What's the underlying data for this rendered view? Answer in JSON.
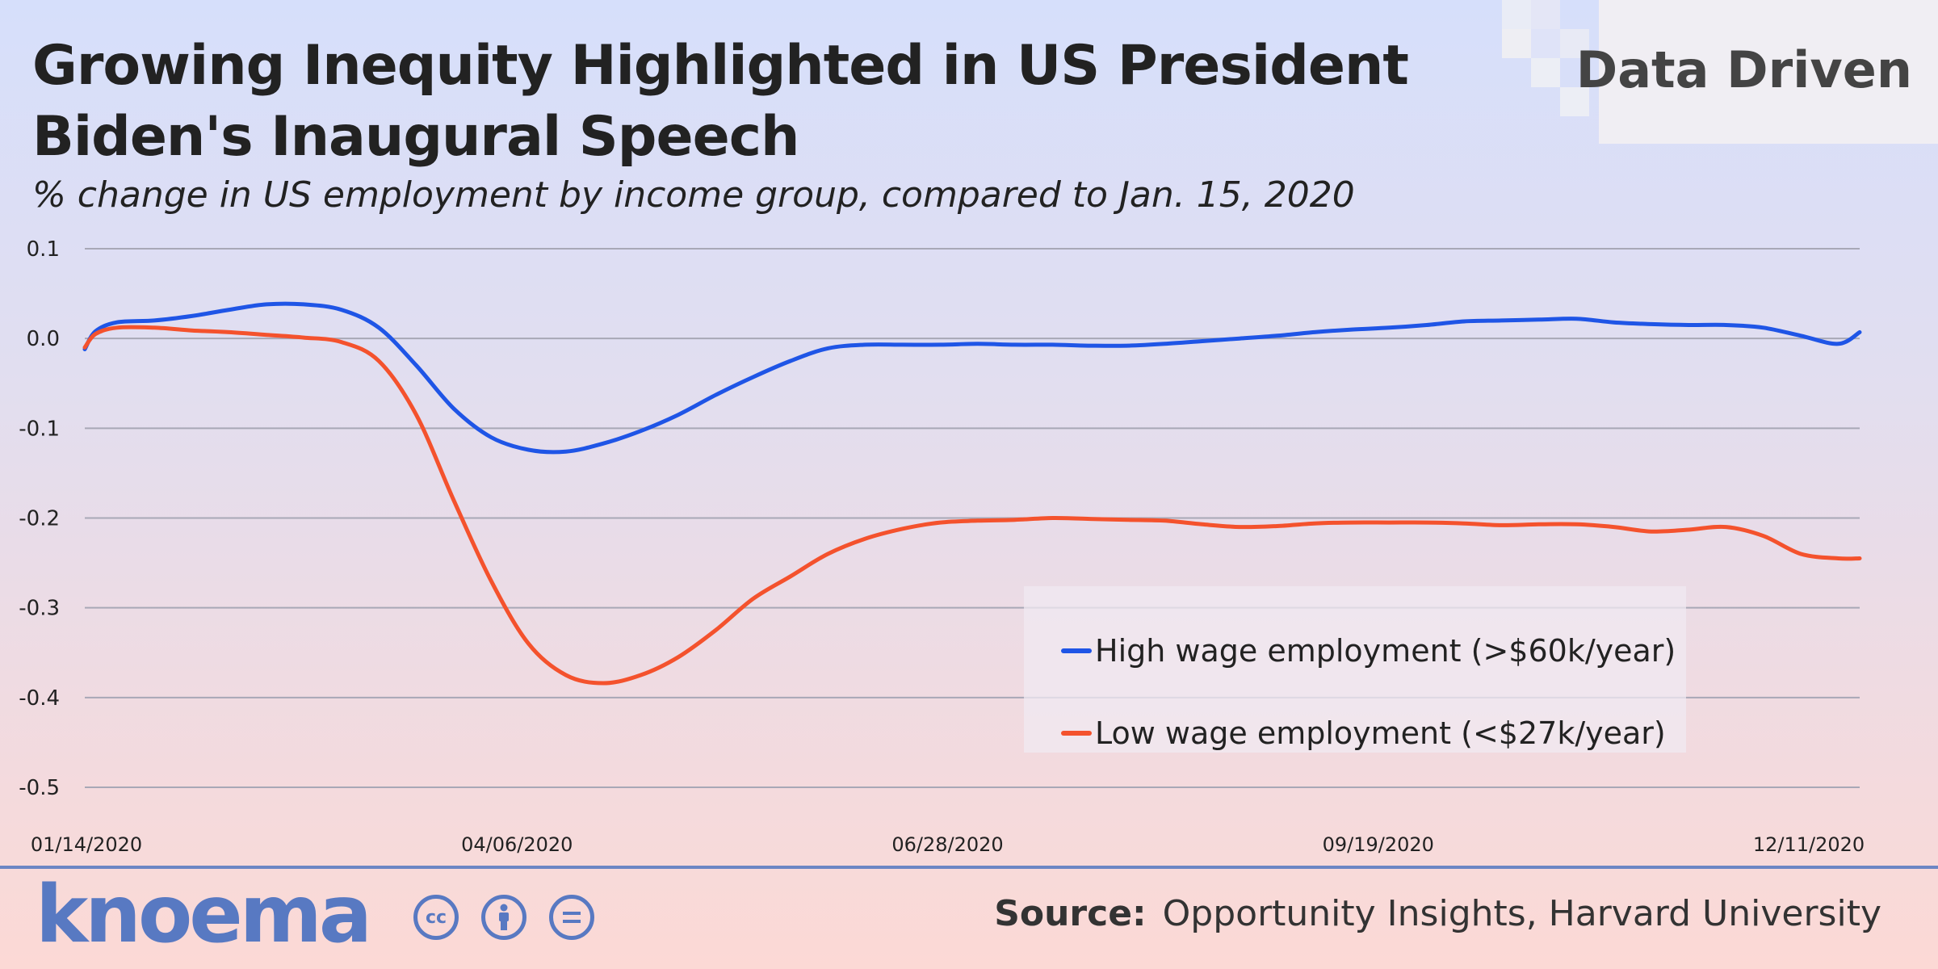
{
  "header": {
    "title": "Growing Inequity Highlighted in US President Biden's Inaugural Speech",
    "subtitle": "% change in US employment by income group, compared to Jan. 15, 2020"
  },
  "brand": {
    "label": "Data Driven"
  },
  "footer": {
    "logo": "knoema",
    "license_icons": [
      "cc-icon",
      "by-attribution-icon",
      "nd-equals-icon"
    ],
    "source_label": "Source:",
    "source_text": "Opportunity Insights, Harvard University"
  },
  "colors": {
    "high_wage": "#1f55e6",
    "low_wage": "#f4522d",
    "accent": "#5879c2"
  },
  "chart_data": {
    "type": "line",
    "title": "Growing Inequity Highlighted in US President Biden's Inaugural Speech",
    "subtitle": "% change in US employment by income group, compared to Jan. 15, 2020",
    "xlabel": "",
    "ylabel": "",
    "x_tick_labels": [
      "01/14/2020",
      "04/06/2020",
      "06/28/2020",
      "09/19/2020",
      "12/11/2020"
    ],
    "y_tick_labels": [
      "0.1",
      "0.0",
      "-0.1",
      "-0.2",
      "-0.3",
      "-0.4",
      "-0.5"
    ],
    "ylim": [
      -0.5,
      0.1
    ],
    "xlim": [
      "2020-01-14",
      "2020-12-11"
    ],
    "grid": "horizontal",
    "legend_position": "bottom-right",
    "x": [
      "2020-01-14",
      "2020-01-16",
      "2020-01-20",
      "2020-01-27",
      "2020-02-03",
      "2020-02-10",
      "2020-02-17",
      "2020-02-24",
      "2020-03-02",
      "2020-03-09",
      "2020-03-16",
      "2020-03-23",
      "2020-03-30",
      "2020-04-06",
      "2020-04-13",
      "2020-04-20",
      "2020-04-27",
      "2020-05-04",
      "2020-05-11",
      "2020-05-18",
      "2020-05-25",
      "2020-06-01",
      "2020-06-08",
      "2020-06-15",
      "2020-06-22",
      "2020-06-29",
      "2020-07-06",
      "2020-07-13",
      "2020-07-20",
      "2020-07-27",
      "2020-08-03",
      "2020-08-10",
      "2020-08-17",
      "2020-08-24",
      "2020-08-31",
      "2020-09-07",
      "2020-09-14",
      "2020-09-21",
      "2020-09-28",
      "2020-10-05",
      "2020-10-12",
      "2020-10-19",
      "2020-10-26",
      "2020-11-02",
      "2020-11-09",
      "2020-11-16",
      "2020-11-23",
      "2020-11-30",
      "2020-12-07",
      "2020-12-11"
    ],
    "series": [
      {
        "name": "High wage employment (>$60k/year)",
        "color": "#1f55e6",
        "values": [
          -0.012,
          0.008,
          0.018,
          0.02,
          0.025,
          0.032,
          0.038,
          0.038,
          0.032,
          0.012,
          -0.03,
          -0.078,
          -0.11,
          -0.124,
          -0.126,
          -0.117,
          -0.103,
          -0.085,
          -0.063,
          -0.043,
          -0.025,
          -0.011,
          -0.007,
          -0.007,
          -0.007,
          -0.006,
          -0.007,
          -0.007,
          -0.008,
          -0.008,
          -0.006,
          -0.003,
          0.0,
          0.003,
          0.007,
          0.01,
          0.012,
          0.015,
          0.019,
          0.02,
          0.021,
          0.022,
          0.018,
          0.016,
          0.015,
          0.015,
          0.012,
          0.003,
          -0.006,
          0.007
        ]
      },
      {
        "name": "Low wage employment (<$27k/year)",
        "color": "#f4522d",
        "values": [
          -0.01,
          0.005,
          0.012,
          0.012,
          0.009,
          0.007,
          0.004,
          0.001,
          -0.004,
          -0.025,
          -0.085,
          -0.18,
          -0.27,
          -0.34,
          -0.375,
          -0.384,
          -0.375,
          -0.355,
          -0.325,
          -0.29,
          -0.265,
          -0.24,
          -0.223,
          -0.212,
          -0.205,
          -0.203,
          -0.202,
          -0.2,
          -0.201,
          -0.202,
          -0.203,
          -0.207,
          -0.21,
          -0.209,
          -0.206,
          -0.205,
          -0.205,
          -0.205,
          -0.206,
          -0.208,
          -0.207,
          -0.207,
          -0.21,
          -0.215,
          -0.213,
          -0.21,
          -0.22,
          -0.24,
          -0.245,
          -0.245
        ]
      }
    ]
  }
}
